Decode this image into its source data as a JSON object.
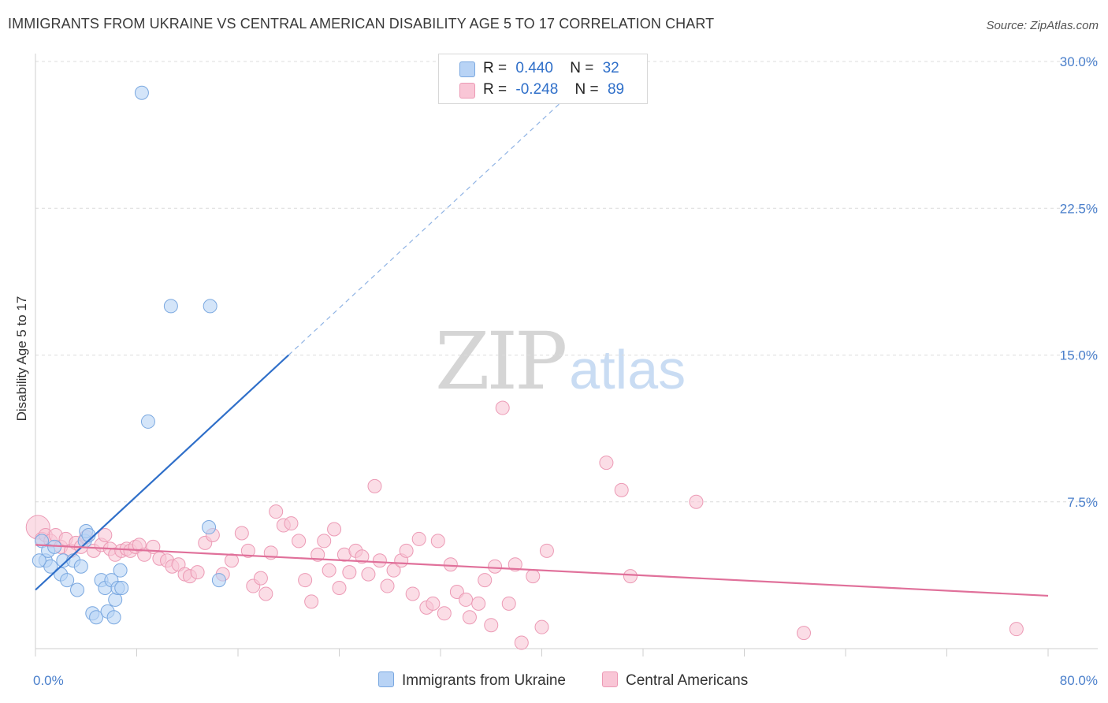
{
  "title": "IMMIGRANTS FROM UKRAINE VS CENTRAL AMERICAN DISABILITY AGE 5 TO 17 CORRELATION CHART",
  "source": "Source: ZipAtlas.com",
  "watermark": {
    "zip": "ZIP",
    "atlas": "atlas"
  },
  "legend": {
    "rows": [
      {
        "r_label": "R =",
        "r_value": "0.440",
        "n_label": "N =",
        "n_value": "32",
        "color": "#b8d3f5",
        "border": "#7aa8e0"
      },
      {
        "r_label": "R =",
        "r_value": "-0.248",
        "n_label": "N =",
        "n_value": "89",
        "color": "#f9c6d6",
        "border": "#ec9ab5"
      }
    ]
  },
  "bottom_legend": {
    "ukraine": "Immigrants from Ukraine",
    "central": "Central Americans"
  },
  "chart_data": {
    "type": "scatter",
    "title": "IMMIGRANTS FROM UKRAINE VS CENTRAL AMERICAN DISABILITY AGE 5 TO 17 CORRELATION CHART",
    "xlabel": "",
    "ylabel": "Disability Age 5 to 17",
    "xlim": [
      0,
      80
    ],
    "ylim": [
      0,
      30
    ],
    "x_tick_labels": [
      "0.0%",
      "80.0%"
    ],
    "y_ticks": [
      7.5,
      15.0,
      22.5,
      30.0
    ],
    "y_tick_labels": [
      "7.5%",
      "15.0%",
      "22.5%",
      "30.0%"
    ],
    "grid": true,
    "legend_position": "top-center",
    "series": [
      {
        "name": "Immigrants from Ukraine",
        "color": "#7aa8e0",
        "fill": "#b8d3f5",
        "trend_line": {
          "x0": 0,
          "y0": 3.0,
          "x1": 20,
          "y1": 15.0,
          "dashed_to_x": 43
        },
        "points": [
          [
            0.5,
            5.5
          ],
          [
            0.8,
            4.5
          ],
          [
            1.0,
            5.0
          ],
          [
            1.2,
            4.2
          ],
          [
            1.5,
            5.2
          ],
          [
            2.0,
            3.8
          ],
          [
            2.2,
            4.5
          ],
          [
            2.5,
            3.5
          ],
          [
            3.0,
            4.5
          ],
          [
            3.3,
            3.0
          ],
          [
            3.6,
            4.2
          ],
          [
            3.9,
            5.5
          ],
          [
            4.0,
            6.0
          ],
          [
            4.2,
            5.8
          ],
          [
            4.5,
            1.8
          ],
          [
            4.8,
            1.6
          ],
          [
            5.2,
            3.5
          ],
          [
            5.5,
            3.1
          ],
          [
            5.7,
            1.9
          ],
          [
            6.0,
            3.5
          ],
          [
            6.2,
            1.6
          ],
          [
            6.3,
            2.5
          ],
          [
            6.5,
            3.1
          ],
          [
            6.7,
            4.0
          ],
          [
            6.8,
            3.1
          ],
          [
            8.4,
            28.4
          ],
          [
            8.9,
            11.6
          ],
          [
            10.7,
            17.5
          ],
          [
            13.8,
            17.5
          ],
          [
            13.7,
            6.2
          ],
          [
            14.5,
            3.5
          ],
          [
            0.3,
            4.5
          ]
        ]
      },
      {
        "name": "Central Americans",
        "color": "#ec9ab5",
        "fill": "#f9c6d6",
        "trend_line": {
          "x0": 0,
          "y0": 5.3,
          "x1": 80,
          "y1": 2.7
        },
        "points": [
          [
            0.2,
            6.2
          ],
          [
            0.5,
            5.6
          ],
          [
            0.8,
            5.8
          ],
          [
            1.2,
            5.5
          ],
          [
            1.6,
            5.8
          ],
          [
            2.0,
            5.2
          ],
          [
            2.4,
            5.6
          ],
          [
            2.8,
            5.0
          ],
          [
            3.2,
            5.4
          ],
          [
            3.6,
            5.2
          ],
          [
            4.0,
            5.7
          ],
          [
            4.6,
            5.0
          ],
          [
            5.2,
            5.3
          ],
          [
            5.5,
            5.8
          ],
          [
            5.9,
            5.1
          ],
          [
            6.3,
            4.8
          ],
          [
            6.8,
            5.0
          ],
          [
            7.2,
            5.1
          ],
          [
            7.5,
            5.0
          ],
          [
            7.9,
            5.2
          ],
          [
            8.2,
            5.3
          ],
          [
            8.6,
            4.8
          ],
          [
            9.3,
            5.2
          ],
          [
            9.8,
            4.6
          ],
          [
            10.4,
            4.5
          ],
          [
            10.8,
            4.2
          ],
          [
            11.3,
            4.3
          ],
          [
            11.8,
            3.8
          ],
          [
            12.2,
            3.7
          ],
          [
            12.8,
            3.9
          ],
          [
            13.4,
            5.4
          ],
          [
            14.0,
            5.8
          ],
          [
            14.8,
            3.8
          ],
          [
            15.5,
            4.5
          ],
          [
            16.3,
            5.9
          ],
          [
            16.8,
            5.0
          ],
          [
            17.2,
            3.2
          ],
          [
            17.8,
            3.6
          ],
          [
            18.2,
            2.8
          ],
          [
            18.6,
            4.9
          ],
          [
            19.0,
            7.0
          ],
          [
            19.6,
            6.3
          ],
          [
            20.2,
            6.4
          ],
          [
            20.8,
            5.5
          ],
          [
            21.3,
            3.5
          ],
          [
            21.8,
            2.4
          ],
          [
            22.3,
            4.8
          ],
          [
            22.8,
            5.5
          ],
          [
            23.2,
            4.0
          ],
          [
            23.6,
            6.1
          ],
          [
            24.0,
            3.1
          ],
          [
            24.4,
            4.8
          ],
          [
            24.8,
            3.9
          ],
          [
            25.3,
            5.0
          ],
          [
            25.8,
            4.7
          ],
          [
            26.3,
            3.8
          ],
          [
            26.8,
            8.3
          ],
          [
            27.2,
            4.5
          ],
          [
            27.8,
            3.2
          ],
          [
            28.3,
            4.0
          ],
          [
            28.9,
            4.5
          ],
          [
            29.3,
            5.0
          ],
          [
            29.8,
            2.8
          ],
          [
            30.3,
            5.6
          ],
          [
            30.9,
            2.1
          ],
          [
            31.4,
            2.3
          ],
          [
            31.8,
            5.5
          ],
          [
            32.3,
            1.8
          ],
          [
            32.8,
            4.3
          ],
          [
            33.3,
            2.9
          ],
          [
            34.0,
            2.5
          ],
          [
            34.3,
            1.6
          ],
          [
            35.0,
            2.3
          ],
          [
            35.5,
            3.5
          ],
          [
            36.0,
            1.2
          ],
          [
            36.3,
            4.2
          ],
          [
            36.9,
            12.3
          ],
          [
            37.4,
            2.3
          ],
          [
            37.9,
            4.3
          ],
          [
            38.4,
            0.3
          ],
          [
            39.3,
            3.7
          ],
          [
            40.0,
            1.1
          ],
          [
            40.4,
            5.0
          ],
          [
            45.1,
            9.5
          ],
          [
            46.3,
            8.1
          ],
          [
            47.0,
            3.7
          ],
          [
            52.2,
            7.5
          ],
          [
            60.7,
            0.8
          ],
          [
            77.5,
            1.0
          ]
        ]
      }
    ]
  }
}
